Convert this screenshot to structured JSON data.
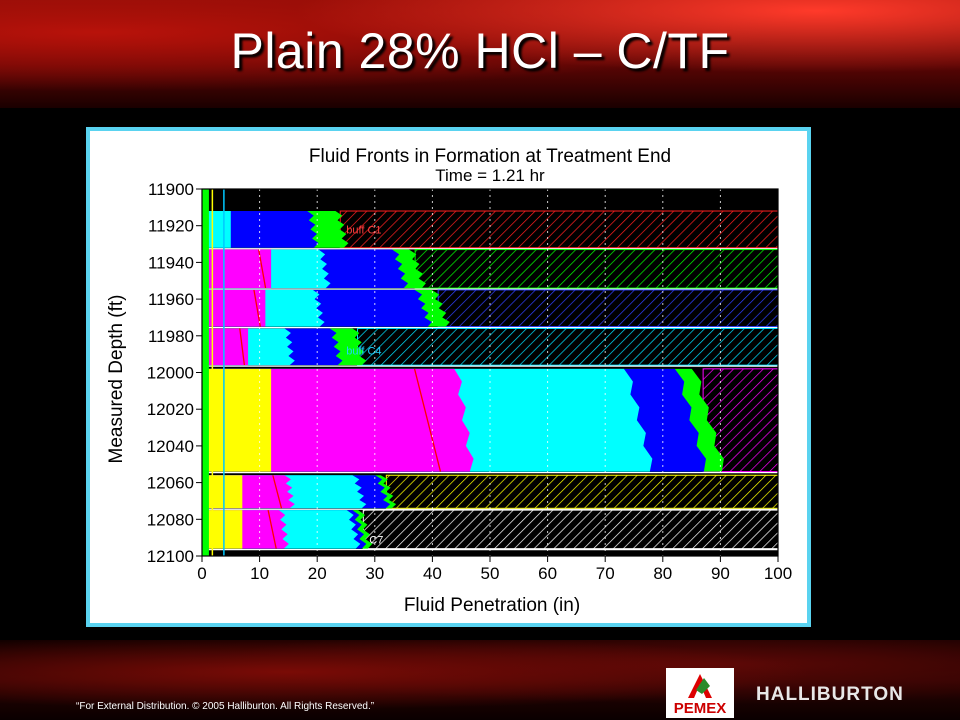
{
  "slide": {
    "title": "Plain 28% HCl – C/TF",
    "footer": "“For External Distribution. © 2005 Halliburton. All Rights Reserved.”",
    "logo_left": "PEMEX",
    "logo_right": "HALLIBURTON"
  },
  "chart_data": {
    "type": "area",
    "title": "Fluid Fronts in Formation at Treatment End",
    "subtitle": "Time = 1.21 hr",
    "xlabel": "Fluid Penetration (in)",
    "ylabel": "Measured Depth (ft)",
    "xlim": [
      0,
      100
    ],
    "ylim": [
      11900,
      12100
    ],
    "y_inverted": true,
    "xticks": [
      0,
      10,
      20,
      30,
      40,
      50,
      60,
      70,
      80,
      90,
      100
    ],
    "yticks": [
      11900,
      11920,
      11940,
      11960,
      11980,
      12000,
      12020,
      12040,
      12060,
      12080,
      12100
    ],
    "grid": "vertical dotted",
    "colors": {
      "blue": "#0000ff",
      "cyan": "#00ffff",
      "magenta": "#ff00ff",
      "yellow": "#ffff00",
      "green": "#00ff00",
      "red_line": "#ff0000",
      "background": "#000000"
    },
    "zone_annotations": [
      {
        "label": "buff C1",
        "depth": 11922,
        "x": 24
      },
      {
        "label": "buff C4",
        "depth": 11988,
        "x": 24
      },
      {
        "label": "C7",
        "depth": 12091,
        "x": 28
      }
    ],
    "zones": [
      {
        "top": 11912,
        "bottom": 11932,
        "fronts": [
          {
            "color": "cyan",
            "x": 5
          },
          {
            "color": "blue",
            "x": 19
          },
          {
            "color": "green",
            "x": 24
          }
        ],
        "hatch": "red",
        "hatch_from": 24
      },
      {
        "top": 11933,
        "bottom": 11954,
        "fronts": [
          {
            "color": "magenta",
            "x": 12
          },
          {
            "color": "cyan",
            "x": 21
          },
          {
            "color": "blue",
            "x": 34
          },
          {
            "color": "green",
            "x": 37
          }
        ],
        "hatch": "green",
        "hatch_from": 37
      },
      {
        "top": 11955,
        "bottom": 11975,
        "fronts": [
          {
            "color": "magenta",
            "x": 11
          },
          {
            "color": "cyan",
            "x": 20
          },
          {
            "color": "blue",
            "x": 38
          },
          {
            "color": "green",
            "x": 41
          }
        ],
        "hatch": "blue",
        "hatch_from": 41
      },
      {
        "top": 11976,
        "bottom": 11996,
        "fronts": [
          {
            "color": "magenta",
            "x": 8
          },
          {
            "color": "cyan",
            "x": 15
          },
          {
            "color": "blue",
            "x": 23
          },
          {
            "color": "green",
            "x": 27
          }
        ],
        "hatch": "cyan",
        "hatch_from": 27
      },
      {
        "top": 11998,
        "bottom": 12054,
        "fronts": [
          {
            "color": "yellow",
            "x": 12
          },
          {
            "color": "magenta",
            "x": 45
          },
          {
            "color": "cyan",
            "x": 75
          },
          {
            "color": "blue",
            "x": 84
          },
          {
            "color": "green",
            "x": 87
          }
        ],
        "hatch": "magenta",
        "hatch_from": 87
      },
      {
        "top": 12056,
        "bottom": 12074,
        "fronts": [
          {
            "color": "yellow",
            "x": 7
          },
          {
            "color": "magenta",
            "x": 15
          },
          {
            "color": "cyan",
            "x": 27
          },
          {
            "color": "blue",
            "x": 31
          },
          {
            "color": "green",
            "x": 32
          }
        ],
        "hatch": "yellow",
        "hatch_from": 32
      },
      {
        "top": 12075,
        "bottom": 12096,
        "fronts": [
          {
            "color": "yellow",
            "x": 7
          },
          {
            "color": "magenta",
            "x": 14
          },
          {
            "color": "cyan",
            "x": 26
          },
          {
            "color": "blue",
            "x": 27
          },
          {
            "color": "green",
            "x": 28
          }
        ],
        "hatch": "white",
        "hatch_from": 28
      }
    ]
  }
}
